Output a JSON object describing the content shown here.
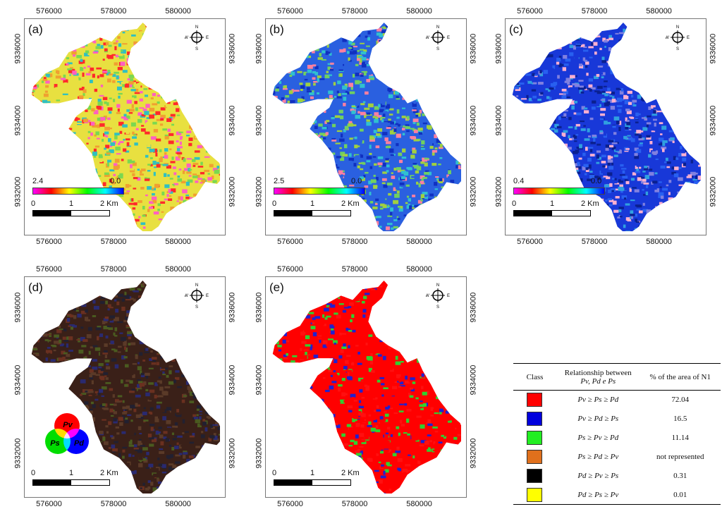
{
  "x_ticks": [
    "576000",
    "578000",
    "580000"
  ],
  "y_ticks": [
    "9336000",
    "9334000",
    "9332000"
  ],
  "panels": [
    {
      "label": "(a)",
      "colorbar": {
        "max": "2.4",
        "min": "0.0"
      }
    },
    {
      "label": "(b)",
      "colorbar": {
        "max": "2.5",
        "min": "0.0"
      }
    },
    {
      "label": "(c)",
      "colorbar": {
        "max": "0.4",
        "min": "0.0"
      }
    },
    {
      "label": "(d)"
    },
    {
      "label": "(e)"
    }
  ],
  "scale": {
    "zero": "0",
    "one": "1",
    "two": "2 Km"
  },
  "north": {
    "n": "N",
    "s": "S",
    "e": "E",
    "w": "W"
  },
  "rgb_legend": {
    "pv": "Pv",
    "ps": "Ps",
    "pd": "Pd"
  },
  "table": {
    "headers": [
      "Class",
      "Relationship between",
      "% of the area of N1"
    ],
    "header_sub": "Pv, Pd e Ps",
    "rows": [
      {
        "color": "#ff0000",
        "relation": "Pv ≥ Ps ≥ Pd",
        "percent": "72.04"
      },
      {
        "color": "#0000dd",
        "relation": "Pv ≥ Pd ≥ Ps",
        "percent": "16.5"
      },
      {
        "color": "#22ee22",
        "relation": "Ps ≥ Pv ≥ Pd",
        "percent": "11.14"
      },
      {
        "color": "#e0701c",
        "relation": "Ps ≥ Pd ≥ Pv",
        "percent": "not represented"
      },
      {
        "color": "#000000",
        "relation": "Pd ≥ Pv ≥ Ps",
        "percent": "0.31"
      },
      {
        "color": "#ffff00",
        "relation": "Pd ≥ Ps ≥ Pv",
        "percent": "0.01"
      }
    ]
  },
  "colors": {
    "a_fill": [
      "#e8e040",
      "#7ad850",
      "#f0a030",
      "#ff2a2a",
      "#30c0c0",
      "#ff60c0"
    ],
    "b_fill": [
      "#2a60e0",
      "#30c0d0",
      "#70d060",
      "#1030c0",
      "#a0d040",
      "#ff80a0"
    ],
    "c_fill": [
      "#1838d8",
      "#2860f0",
      "#30a0e0",
      "#0a2090",
      "#8080e0",
      "#ffb0d0"
    ],
    "d_fill": [
      "#3a2018",
      "#5a3a28",
      "#222030",
      "#4a5a20",
      "#2a2a70",
      "#6a3020"
    ],
    "e_fill": [
      "#ff0000",
      "#ff0000",
      "#ff0000",
      "#2020d0",
      "#30d030",
      "#ff1010"
    ]
  }
}
